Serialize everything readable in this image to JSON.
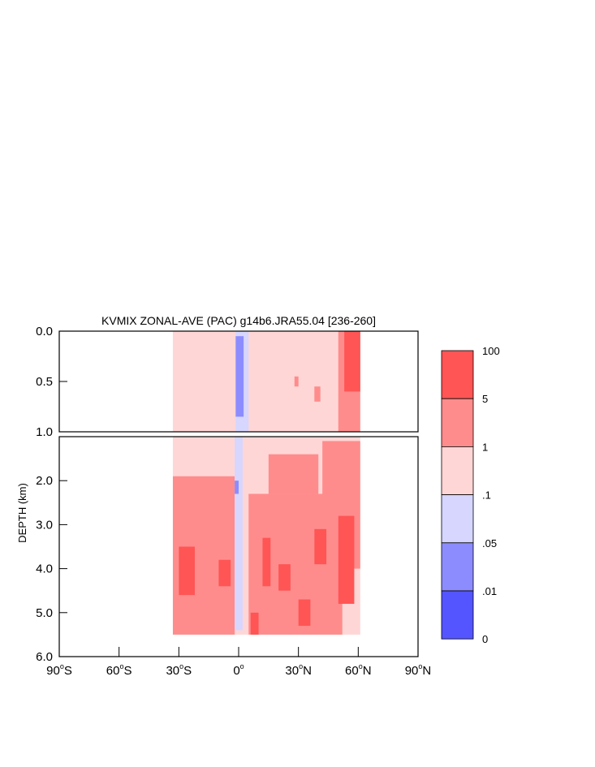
{
  "chart_data": {
    "type": "heatmap",
    "title": "KVMIX ZONAL-AVE (PAC) g14b6.JRA55.04 [236-260]",
    "ylabel": "DEPTH (km)",
    "xlabel": "",
    "xlim": [
      -90,
      90
    ],
    "x_ticks": [
      {
        "value": -90,
        "label": "90",
        "suffix": "S"
      },
      {
        "value": -60,
        "label": "60",
        "suffix": "S"
      },
      {
        "value": -30,
        "label": "30",
        "suffix": "S"
      },
      {
        "value": 0,
        "label": "0",
        "suffix": ""
      },
      {
        "value": 30,
        "label": "30",
        "suffix": "N"
      },
      {
        "value": 60,
        "label": "60",
        "suffix": "N"
      },
      {
        "value": 90,
        "label": "90",
        "suffix": "N"
      }
    ],
    "panels": [
      {
        "name": "upper",
        "ylim": [
          0.0,
          1.0
        ],
        "y_ticks": [
          {
            "value": 0.0,
            "label": "0.0"
          },
          {
            "value": 0.5,
            "label": "0.5"
          },
          {
            "value": 1.0,
            "label": "1.0"
          }
        ]
      },
      {
        "name": "lower",
        "ylim": [
          1.0,
          6.0
        ],
        "y_ticks": [
          {
            "value": 2.0,
            "label": "2.0"
          },
          {
            "value": 3.0,
            "label": "3.0"
          },
          {
            "value": 4.0,
            "label": "4.0"
          },
          {
            "value": 5.0,
            "label": "5.0"
          },
          {
            "value": 6.0,
            "label": "6.0"
          }
        ]
      }
    ],
    "colorbar": {
      "labels": [
        "100",
        "5",
        "1",
        ".1",
        ".05",
        ".01",
        "0"
      ],
      "colors": [
        "#ff5555",
        "#ff8c8c",
        "#ffd6d6",
        "#d6d6ff",
        "#8c8cff",
        "#5555ff"
      ]
    },
    "regions": [
      {
        "level": 2,
        "x0": -33,
        "x1": 61,
        "y0": 0.0,
        "y1": 1.0
      },
      {
        "level": 3,
        "x0": -1.5,
        "x1": 5,
        "y0": 0.0,
        "y1": 1.0
      },
      {
        "level": 4,
        "x0": -1.5,
        "x1": 2.5,
        "y0": 0.05,
        "y1": 0.85
      },
      {
        "level": 1,
        "x0": 50,
        "x1": 61,
        "y0": 0.0,
        "y1": 1.0
      },
      {
        "level": 0,
        "x0": 53,
        "x1": 61,
        "y0": 0.0,
        "y1": 0.6
      },
      {
        "level": 1,
        "x0": 38,
        "x1": 41,
        "y0": 0.55,
        "y1": 0.7
      },
      {
        "level": 1,
        "x0": 28,
        "x1": 30,
        "y0": 0.45,
        "y1": 0.55
      },
      {
        "level": 2,
        "x0": -33,
        "x1": 61,
        "y0": 1.0,
        "y1": 5.5
      },
      {
        "level": 1,
        "x0": -33,
        "x1": -2,
        "y0": 1.9,
        "y1": 5.5
      },
      {
        "level": 1,
        "x0": 5,
        "x1": 52,
        "y0": 2.3,
        "y1": 5.5
      },
      {
        "level": 1,
        "x0": 42,
        "x1": 61,
        "y0": 1.1,
        "y1": 4.0
      },
      {
        "level": 1,
        "x0": 15,
        "x1": 40,
        "y0": 1.4,
        "y1": 2.3
      },
      {
        "level": 0,
        "x0": 50,
        "x1": 58,
        "y0": 2.8,
        "y1": 4.8
      },
      {
        "level": 0,
        "x0": -30,
        "x1": -22,
        "y0": 3.5,
        "y1": 4.6
      },
      {
        "level": 0,
        "x0": -10,
        "x1": -4,
        "y0": 3.8,
        "y1": 4.4
      },
      {
        "level": 0,
        "x0": 12,
        "x1": 16,
        "y0": 3.3,
        "y1": 4.4
      },
      {
        "level": 0,
        "x0": 20,
        "x1": 26,
        "y0": 3.9,
        "y1": 4.5
      },
      {
        "level": 0,
        "x0": 38,
        "x1": 44,
        "y0": 3.1,
        "y1": 3.9
      },
      {
        "level": 0,
        "x0": 6,
        "x1": 10,
        "y0": 5.0,
        "y1": 5.5
      },
      {
        "level": 0,
        "x0": 30,
        "x1": 36,
        "y0": 4.7,
        "y1": 5.3
      },
      {
        "level": 3,
        "x0": -2,
        "x1": 2,
        "y0": 1.0,
        "y1": 5.4
      },
      {
        "level": 4,
        "x0": -2,
        "x1": 0,
        "y0": 2.0,
        "y1": 2.3
      }
    ]
  }
}
